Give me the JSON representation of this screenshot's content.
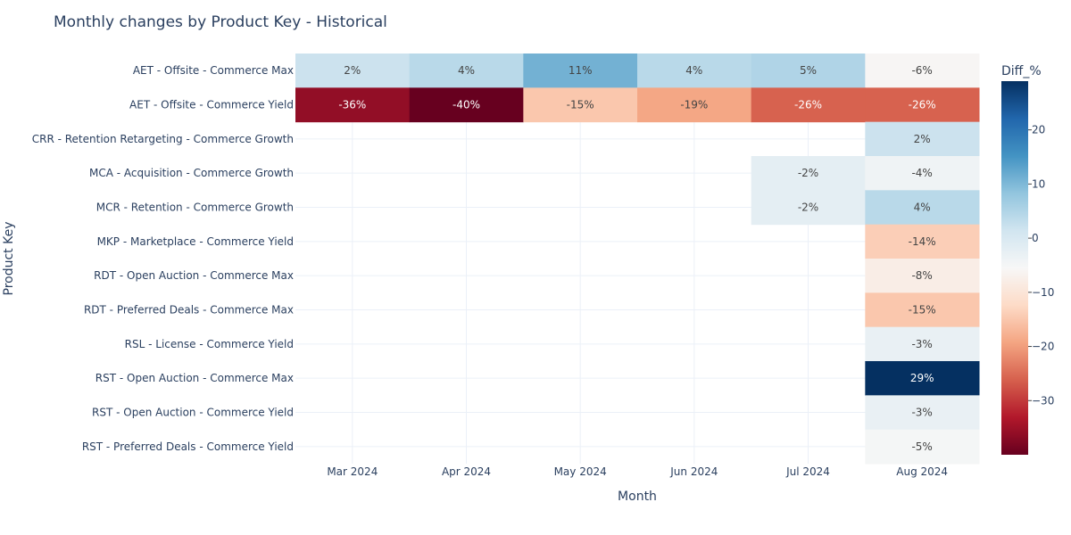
{
  "chart_data": {
    "type": "heatmap",
    "title": "Monthly changes by Product Key - Historical",
    "xlabel": "Month",
    "ylabel": "Product Key",
    "x": [
      "Mar 2024",
      "Apr 2024",
      "May 2024",
      "Jun 2024",
      "Jul 2024",
      "Aug 2024"
    ],
    "y": [
      "AET - Offsite - Commerce Max",
      "AET - Offsite - Commerce Yield",
      "CRR - Retention Retargeting - Commerce Growth",
      "MCA - Acquisition - Commerce Growth",
      "MCR - Retention - Commerce Growth",
      "MKP - Marketplace - Commerce Yield",
      "RDT - Open Auction - Commerce Max",
      "RDT - Preferred Deals - Commerce Max",
      "RSL - License - Commerce Yield",
      "RST - Open Auction - Commerce Max",
      "RST - Open Auction - Commerce Yield",
      "RST - Preferred Deals - Commerce Yield"
    ],
    "z": [
      [
        2,
        4,
        11,
        4,
        5,
        -6
      ],
      [
        -36,
        -40,
        -15,
        -19,
        -26,
        -26
      ],
      [
        null,
        null,
        null,
        null,
        null,
        2
      ],
      [
        null,
        null,
        null,
        null,
        -2,
        -4
      ],
      [
        null,
        null,
        null,
        null,
        -2,
        4
      ],
      [
        null,
        null,
        null,
        null,
        null,
        -14
      ],
      [
        null,
        null,
        null,
        null,
        null,
        -8
      ],
      [
        null,
        null,
        null,
        null,
        null,
        -15
      ],
      [
        null,
        null,
        null,
        null,
        null,
        -3
      ],
      [
        null,
        null,
        null,
        null,
        null,
        29
      ],
      [
        null,
        null,
        null,
        null,
        null,
        -3
      ],
      [
        null,
        null,
        null,
        null,
        null,
        -5
      ]
    ],
    "text_suffix": "%",
    "colorbar": {
      "title": "Diff_%",
      "zmin": -40,
      "zmax": 29,
      "tickvals": [
        20,
        10,
        0,
        -10,
        -20,
        -30
      ],
      "ticklabels": [
        "20",
        "10",
        "0",
        "−10",
        "−20",
        "−30"
      ],
      "colorscale": [
        "#67001f",
        "#b2182b",
        "#d6604d",
        "#f4a582",
        "#fddbc7",
        "#f7f7f7",
        "#d1e5f0",
        "#92c5de",
        "#4393c3",
        "#2166ac",
        "#053061"
      ]
    },
    "grid": true
  }
}
